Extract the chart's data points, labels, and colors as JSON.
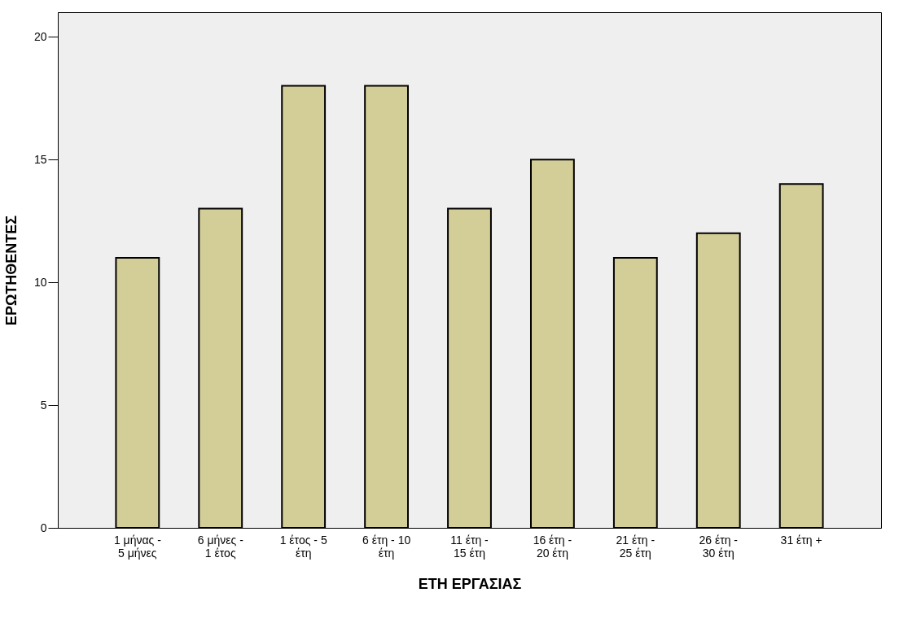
{
  "chart_data": {
    "type": "bar",
    "xlabel": "ΕΤΗ ΕΡΓΑΣΙΑΣ",
    "ylabel": "ΕΡΩΤΗΘΕΝΤΕΣ",
    "categories": [
      "1 μήνας -\n5 μήνες",
      "6 μήνες -\n1 έτος",
      "1 έτος - 5\nέτη",
      "6 έτη - 10\nέτη",
      "11 έτη -\n15 έτη",
      "16 έτη -\n20 έτη",
      "21 έτη -\n25 έτη",
      "26 έτη -\n30 έτη",
      "31 έτη +"
    ],
    "values": [
      11,
      13,
      18,
      18,
      13,
      15,
      11,
      12,
      14
    ],
    "color": "#d3cd98",
    "ylim": [
      0,
      21
    ],
    "yticks": [
      0,
      5,
      10,
      15,
      20
    ],
    "grid": false
  }
}
